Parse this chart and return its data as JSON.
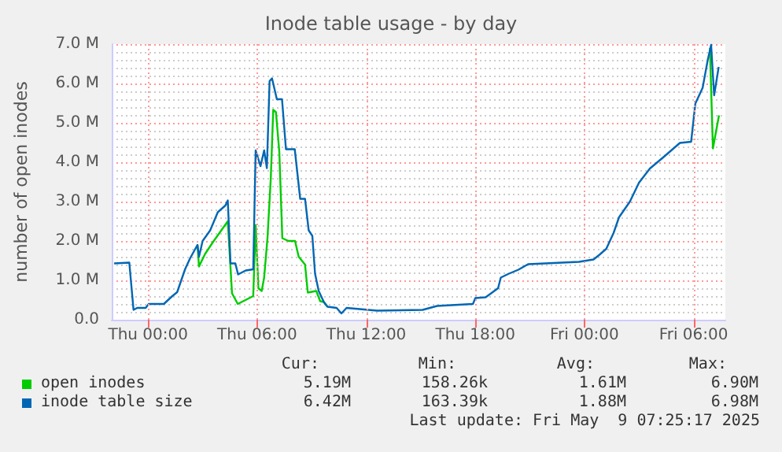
{
  "chart_data": {
    "type": "line",
    "title": "Inode table usage - by day",
    "ylabel": "number of open inodes",
    "xlim": [
      "2025-05-07T22:00",
      "2025-05-09T07:45"
    ],
    "xticks": [
      {
        "value": "2025-05-08T00:00",
        "label": "Thu 00:00"
      },
      {
        "value": "2025-05-08T06:00",
        "label": "Thu 06:00"
      },
      {
        "value": "2025-05-08T12:00",
        "label": "Thu 12:00"
      },
      {
        "value": "2025-05-08T18:00",
        "label": "Thu 18:00"
      },
      {
        "value": "2025-05-09T00:00",
        "label": "Fri 00:00"
      },
      {
        "value": "2025-05-09T06:00",
        "label": "Fri 06:00"
      }
    ],
    "ylim": [
      0,
      7
    ],
    "yticks": [
      {
        "value": 0,
        "label": "0.0"
      },
      {
        "value": 1,
        "label": "1.0 M"
      },
      {
        "value": 2,
        "label": "2.0 M"
      },
      {
        "value": 3,
        "label": "3.0 M"
      },
      {
        "value": 4,
        "label": "4.0 M"
      },
      {
        "value": 5,
        "label": "5.0 M"
      },
      {
        "value": 6,
        "label": "6.0 M"
      },
      {
        "value": 7,
        "label": "7.0 M"
      }
    ],
    "grid": true,
    "legend": "bottom",
    "marker": "none",
    "line_style": "solid",
    "series": [
      {
        "name": "open inodes",
        "color": "#00cc00",
        "x": [
          "2025-05-08T02:43",
          "2025-05-08T02:48",
          "2025-05-08T03:08",
          "2025-05-08T03:34",
          "2025-05-08T03:58",
          "2025-05-08T04:23",
          "2025-05-08T04:37",
          "2025-05-08T04:56",
          "2025-05-08T05:47",
          "2025-05-08T05:55",
          "2025-05-08T06:04",
          "2025-05-08T06:15",
          "2025-05-08T06:23",
          "2025-05-08T06:34",
          "2025-05-08T06:45",
          "2025-05-08T06:53",
          "2025-05-08T07:02",
          "2025-05-08T07:13",
          "2025-05-08T07:23",
          "2025-05-08T07:43",
          "2025-05-08T08:05",
          "2025-05-08T08:17",
          "2025-05-08T08:38",
          "2025-05-08T08:47",
          "2025-05-08T09:15",
          "2025-05-08T09:28",
          "2025-05-08T09:40",
          "2025-05-08T09:52",
          "2025-05-08T10:22",
          "2025-05-09T06:54",
          "2025-05-09T07:04",
          "2025-05-09T07:24"
        ],
        "values": [
          1.9,
          1.35,
          1.67,
          1.97,
          2.23,
          2.5,
          0.67,
          0.4,
          0.6,
          2.4,
          0.8,
          0.73,
          1.07,
          2.07,
          3.6,
          5.33,
          5.27,
          4.27,
          2.07,
          2,
          2,
          1.6,
          1.4,
          0.69,
          0.73,
          0.47,
          0.45,
          0.33,
          null,
          6.9,
          4.35,
          5.19
        ]
      },
      {
        "name": "inode table size",
        "color": "#0066b3",
        "x": [
          "2025-05-07T22:08",
          "2025-05-07T22:58",
          "2025-05-07T23:12",
          "2025-05-07T23:24",
          "2025-05-07T23:52",
          "2025-05-08T00:02",
          "2025-05-08T00:52",
          "2025-05-08T01:20",
          "2025-05-08T01:36",
          "2025-05-08T02:02",
          "2025-05-08T02:18",
          "2025-05-08T02:43",
          "2025-05-08T02:48",
          "2025-05-08T03:00",
          "2025-05-08T03:25",
          "2025-05-08T03:50",
          "2025-05-08T04:15",
          "2025-05-08T04:23",
          "2025-05-08T04:32",
          "2025-05-08T04:48",
          "2025-05-08T04:57",
          "2025-05-08T05:22",
          "2025-05-08T05:47",
          "2025-05-08T05:55",
          "2025-05-08T06:11",
          "2025-05-08T06:23",
          "2025-05-08T06:32",
          "2025-05-08T06:41",
          "2025-05-08T06:49",
          "2025-05-08T07:05",
          "2025-05-08T07:22",
          "2025-05-08T07:35",
          "2025-05-08T08:04",
          "2025-05-08T08:22",
          "2025-05-08T08:38",
          "2025-05-08T08:50",
          "2025-05-08T09:02",
          "2025-05-08T09:11",
          "2025-05-08T09:23",
          "2025-05-08T09:40",
          "2025-05-08T09:52",
          "2025-05-08T10:22",
          "2025-05-08T10:38",
          "2025-05-08T10:55",
          "2025-05-08T12:36",
          "2025-05-08T15:06",
          "2025-05-08T15:54",
          "2025-05-08T17:52",
          "2025-05-08T18:00",
          "2025-05-08T18:34",
          "2025-05-08T19:15",
          "2025-05-08T19:24",
          "2025-05-08T19:48",
          "2025-05-08T20:22",
          "2025-05-08T20:54",
          "2025-05-08T23:42",
          "2025-05-09T00:30",
          "2025-05-09T00:48",
          "2025-05-09T01:12",
          "2025-05-09T01:36",
          "2025-05-09T01:54",
          "2025-05-09T02:30",
          "2025-05-09T03:00",
          "2025-05-09T03:36",
          "2025-05-09T04:24",
          "2025-05-09T05:15",
          "2025-05-09T05:52",
          "2025-05-09T06:06",
          "2025-05-09T06:30",
          "2025-05-09T06:47",
          "2025-05-09T06:58",
          "2025-05-09T07:08",
          "2025-05-09T07:23"
        ],
        "values": [
          1.43,
          1.45,
          0.25,
          0.3,
          0.3,
          0.4,
          0.4,
          0.6,
          0.7,
          1.28,
          1.55,
          1.9,
          1.6,
          2,
          2.27,
          2.73,
          2.9,
          3.03,
          1.43,
          1.43,
          1.15,
          1.25,
          1.28,
          4.3,
          3.9,
          4.3,
          3.85,
          6.06,
          6.13,
          5.6,
          5.6,
          4.33,
          4.33,
          3.07,
          3.07,
          2.27,
          2.13,
          1.17,
          0.73,
          0.45,
          0.33,
          0.3,
          0.16,
          0.3,
          0.23,
          0.25,
          0.35,
          0.4,
          0.55,
          0.57,
          0.8,
          1.07,
          1.16,
          1.27,
          1.41,
          1.47,
          1.53,
          1.64,
          1.8,
          2.2,
          2.6,
          3,
          3.48,
          3.84,
          4.15,
          4.49,
          4.52,
          5.49,
          5.89,
          6.6,
          6.98,
          5.7,
          6.42
        ]
      }
    ],
    "annotations": [
      "Cur:",
      "Min:",
      "Avg:",
      "Max:",
      "5.19M",
      "158.26k",
      "1.61M",
      "6.90M",
      "6.42M",
      "163.39k",
      "1.88M",
      "6.98M",
      "Last update: Fri May  9 07:25:17 2025"
    ]
  }
}
